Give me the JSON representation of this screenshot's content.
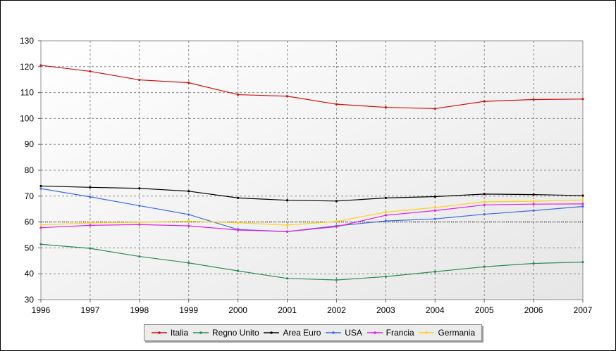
{
  "chart_data": {
    "type": "line",
    "title": "",
    "xlabel": "",
    "ylabel": "",
    "x": [
      "1996",
      "1997",
      "1998",
      "1999",
      "2000",
      "2001",
      "2002",
      "2003",
      "2004",
      "2005",
      "2006",
      "2007"
    ],
    "ylim": [
      30,
      130
    ],
    "yticks": [
      "30",
      "40",
      "50",
      "60",
      "70",
      "80",
      "90",
      "100",
      "110",
      "120",
      "130"
    ],
    "grid": true,
    "legend_position": "bottom-center",
    "reference_line": {
      "value": 60,
      "style": "dotted",
      "color": "#000000"
    },
    "series": [
      {
        "name": "Italia",
        "color": "#d01010",
        "values": [
          120.5,
          118.2,
          114.9,
          113.8,
          109.2,
          108.6,
          105.5,
          104.3,
          103.8,
          106.6,
          107.3,
          107.5
        ]
      },
      {
        "name": "Regno Unito",
        "color": "#2e8b57",
        "values": [
          51.4,
          49.8,
          46.7,
          44.2,
          41.1,
          38.2,
          37.6,
          38.9,
          40.8,
          42.7,
          44.0,
          44.5
        ]
      },
      {
        "name": "Area Euro",
        "color": "#000000",
        "values": [
          73.9,
          73.4,
          73.0,
          71.9,
          69.3,
          68.4,
          68.1,
          69.3,
          69.8,
          70.8,
          70.6,
          70.2
        ]
      },
      {
        "name": "USA",
        "color": "#4169e1",
        "values": [
          72.9,
          69.7,
          66.3,
          62.9,
          57.1,
          56.3,
          58.5,
          60.4,
          61.2,
          63.0,
          64.4,
          66.0
        ]
      },
      {
        "name": "Francia",
        "color": "#e020e0",
        "values": [
          57.8,
          58.7,
          59.0,
          58.5,
          56.9,
          56.3,
          58.2,
          62.6,
          64.4,
          66.6,
          66.9,
          67.0
        ]
      },
      {
        "name": "Germania",
        "color": "#ffd11a",
        "values": [
          58.9,
          59.6,
          59.9,
          60.3,
          59.7,
          58.8,
          60.2,
          63.8,
          65.6,
          67.8,
          68.0,
          68.5
        ]
      }
    ]
  }
}
